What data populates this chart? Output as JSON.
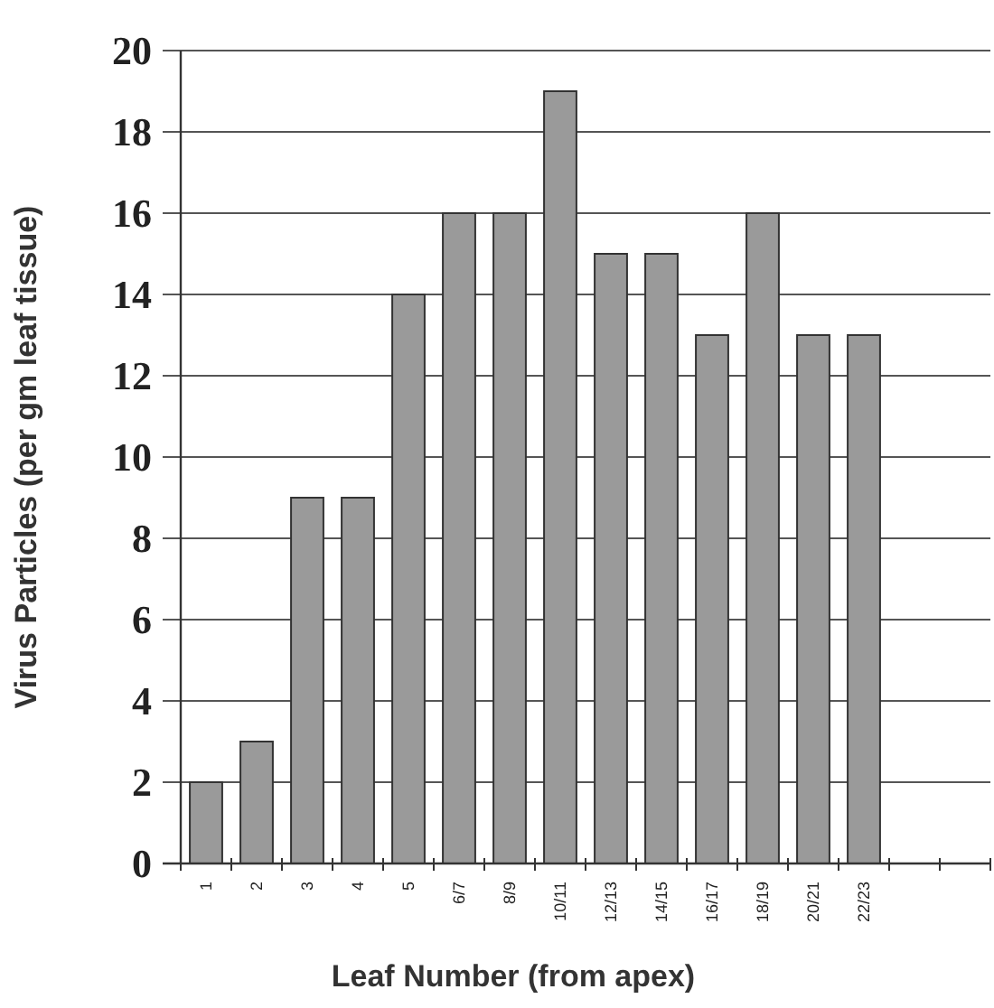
{
  "chart_data": {
    "type": "bar",
    "xlabel": "Leaf Number (from apex)",
    "ylabel": "Virus Particles (per gm leaf tissue)",
    "categories": [
      "1",
      "2",
      "3",
      "4",
      "5",
      "6/7",
      "8/9",
      "10/11",
      "12/13",
      "14/15",
      "16/17",
      "18/19",
      "20/21",
      "22/23",
      null,
      null
    ],
    "values": [
      2,
      3,
      9,
      9,
      14,
      16,
      16,
      19,
      15,
      15,
      13,
      16,
      13,
      13,
      null,
      null
    ],
    "color": "#9a9a9a",
    "ylim": [
      0,
      20
    ],
    "yticks": [
      0,
      2,
      4,
      6,
      8,
      10,
      12,
      14,
      16,
      18,
      20
    ],
    "grid": "y"
  }
}
